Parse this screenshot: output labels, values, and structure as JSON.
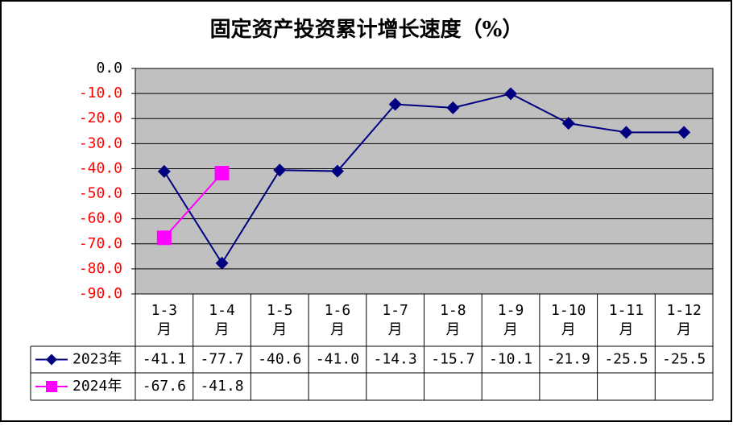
{
  "chart_data": {
    "type": "line",
    "title": "固定资产投资累计增长速度（%）",
    "categories": [
      "1-3月",
      "1-4月",
      "1-5月",
      "1-6月",
      "1-7月",
      "1-8月",
      "1-9月",
      "1-10月",
      "1-11月",
      "1-12月"
    ],
    "series": [
      {
        "name": "2023年",
        "color": "#000080",
        "marker": "diamond",
        "values": [
          -41.1,
          -77.7,
          -40.6,
          -41.0,
          -14.3,
          -15.7,
          -10.1,
          -21.9,
          -25.5,
          -25.5
        ],
        "value_labels": [
          "-41.1",
          "-77.7",
          "-40.6",
          "-41.0",
          "-14.3",
          "-15.7",
          "-10.1",
          "-21.9",
          "-25.5",
          "-25.5"
        ]
      },
      {
        "name": "2024年",
        "color": "#ff00ff",
        "marker": "square",
        "values": [
          -67.6,
          -41.8,
          null,
          null,
          null,
          null,
          null,
          null,
          null,
          null
        ],
        "value_labels": [
          "-67.6",
          "-41.8",
          null,
          null,
          null,
          null,
          null,
          null,
          null,
          null
        ]
      }
    ],
    "ylim": [
      -90,
      0
    ],
    "yticks": [
      {
        "value": 0,
        "label": "0.0"
      },
      {
        "value": -10,
        "label": "-10.0"
      },
      {
        "value": -20,
        "label": "-20.0"
      },
      {
        "value": -30,
        "label": "-30.0"
      },
      {
        "value": -40,
        "label": "-40.0"
      },
      {
        "value": -50,
        "label": "-50.0"
      },
      {
        "value": -60,
        "label": "-60.0"
      },
      {
        "value": -70,
        "label": "-70.0"
      },
      {
        "value": -80,
        "label": "-80.0"
      },
      {
        "value": -90,
        "label": "-90.0"
      }
    ],
    "negative_tick_color": "#ff0000",
    "grid": true,
    "plot_background": "#c0c0c0",
    "data_table": true
  }
}
